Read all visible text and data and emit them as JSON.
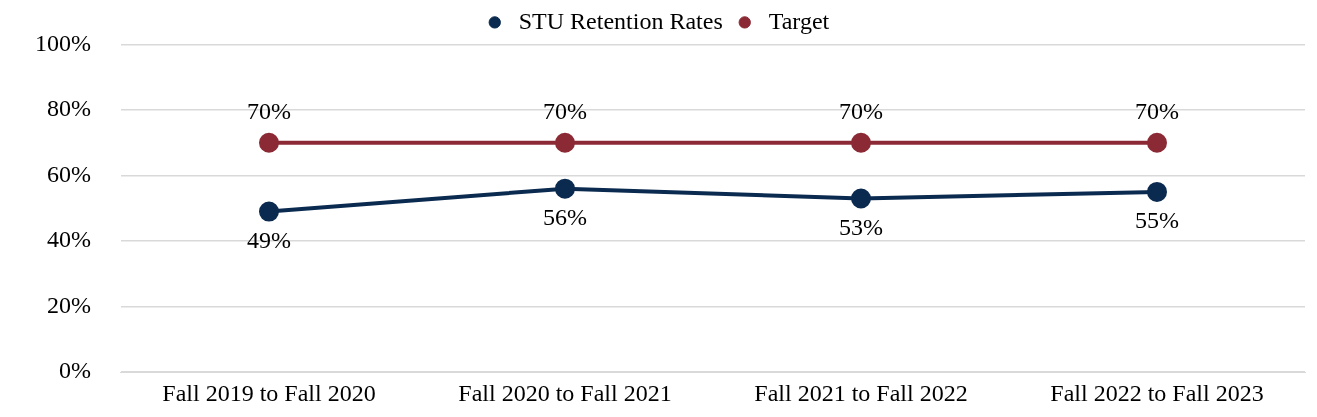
{
  "chart_data": {
    "type": "line",
    "categories": [
      "Fall 2019 to Fall 2020",
      "Fall 2020 to Fall 2021",
      "Fall 2021 to Fall 2022",
      "Fall 2022 to Fall 2023"
    ],
    "series": [
      {
        "name": "STU Retention Rates",
        "color": "#0b2a4f",
        "values": [
          49,
          56,
          53,
          55
        ],
        "value_labels": [
          "49%",
          "56%",
          "53%",
          "55%"
        ]
      },
      {
        "name": "Target",
        "color": "#8b2a35",
        "values": [
          70,
          70,
          70,
          70
        ],
        "value_labels": [
          "70%",
          "70%",
          "70%",
          "70%"
        ]
      }
    ],
    "ylim": [
      0,
      100
    ],
    "yticks": [
      {
        "value": 0,
        "label": "0%"
      },
      {
        "value": 20,
        "label": "20%"
      },
      {
        "value": 40,
        "label": "40%"
      },
      {
        "value": 60,
        "label": "60%"
      },
      {
        "value": 80,
        "label": "80%"
      },
      {
        "value": 100,
        "label": "100%"
      }
    ],
    "grid": "y",
    "legend": "top",
    "marker": "circle",
    "line_style": "solid"
  }
}
